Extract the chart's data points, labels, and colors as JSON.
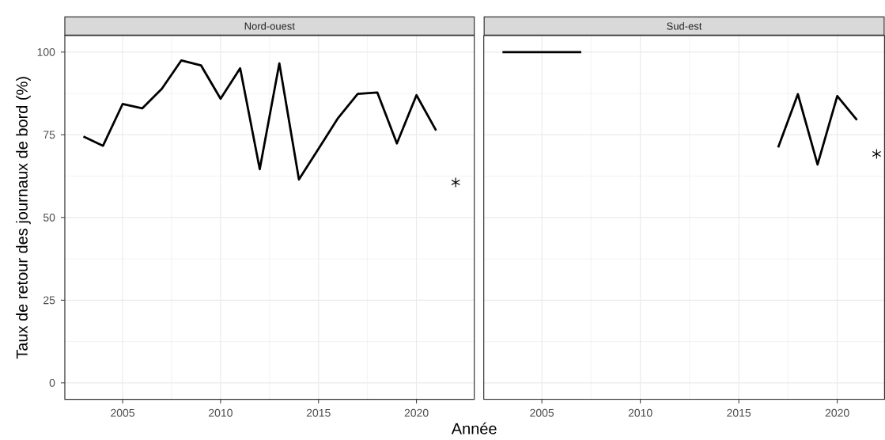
{
  "chart_data": [
    {
      "type": "line",
      "title": "Nord-ouest",
      "xlabel": "Année",
      "ylabel": "Taux de retour des journaux de bord (%)",
      "xlim": [
        2002.05,
        2022.95
      ],
      "ylim": [
        -5,
        105
      ],
      "xticks": [
        2005,
        2010,
        2015,
        2020
      ],
      "yticks": [
        0,
        25,
        50,
        75,
        100
      ],
      "grid": true,
      "series": [
        {
          "color": "#000000",
          "x": [
            2003,
            2004,
            2005,
            2006,
            2007,
            2008,
            2009,
            2010,
            2011,
            2012,
            2013,
            2014,
            2015,
            2016,
            2017,
            2018,
            2019,
            2020,
            2021
          ],
          "values": [
            74.5,
            71.7,
            84.3,
            83.0,
            88.9,
            97.5,
            96.0,
            85.9,
            95.1,
            64.6,
            96.6,
            61.5,
            70.8,
            80.1,
            87.4,
            87.8,
            72.4,
            87.0,
            76.3
          ]
        },
        {
          "type": "scatter",
          "marker": "cross",
          "color": "#000000",
          "x": [
            2022
          ],
          "values": [
            60.6
          ]
        }
      ]
    },
    {
      "type": "line",
      "title": "Sud-est",
      "xlim": [
        2002.05,
        2022.4
      ],
      "ylim": [
        -5,
        105
      ],
      "xticks": [
        2005,
        2010,
        2015,
        2020
      ],
      "yticks": [
        0,
        25,
        50,
        75,
        100
      ],
      "grid": true,
      "tick_labels": "x",
      "series": [
        {
          "color": "#000000",
          "x": [
            2003,
            2004,
            2005,
            2006,
            2007,
            2008,
            2009,
            2010,
            2011,
            2012,
            2013,
            2014,
            2015,
            2016,
            2017,
            2018,
            2019,
            2020,
            2021
          ],
          "values": [
            100,
            100,
            100,
            100,
            100,
            null,
            null,
            null,
            null,
            null,
            null,
            null,
            null,
            null,
            71.2,
            87.3,
            66.0,
            86.7,
            79.5
          ]
        },
        {
          "type": "scatter",
          "marker": "cross",
          "color": "#000000",
          "x": [
            2022
          ],
          "values": [
            69.2
          ]
        }
      ]
    }
  ]
}
